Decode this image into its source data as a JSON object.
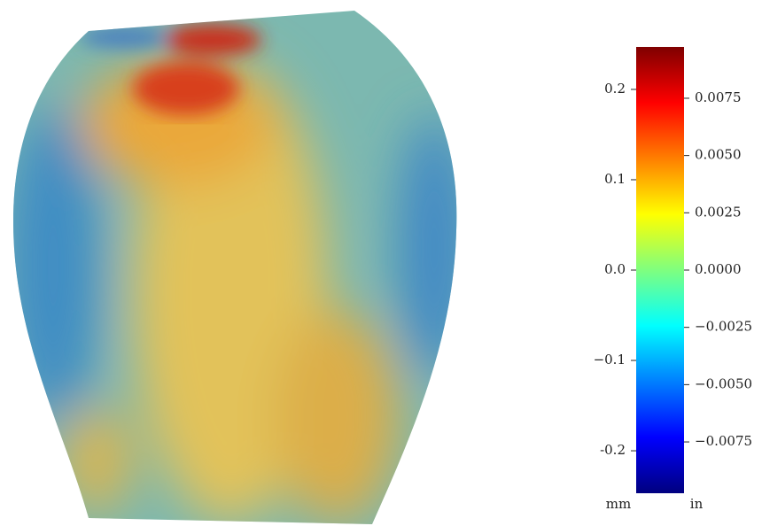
{
  "chart_data": {
    "type": "heatmap",
    "colormap": "jet",
    "ylabel": "mm",
    "y2label": "in",
    "ylim": [
      -0.247,
      0.247
    ],
    "yticks": [
      -0.2,
      {
        "value": -0.1,
        "label": "−0.1"
      },
      {
        "value": 0,
        "label": "0.0"
      },
      0.1,
      0.2
    ],
    "y2lim": [
      -0.00974,
      0.00974
    ],
    "y2ticks": [
      {
        "value": -0.0075,
        "label": "−0.0075"
      },
      {
        "value": -0.005,
        "label": "−0.0050"
      },
      {
        "value": -0.0025,
        "label": "−0.0025"
      },
      {
        "value": 0,
        "label": "0.0000"
      },
      {
        "value": 0.0025,
        "label": "0.0025"
      },
      {
        "value": 0.005,
        "label": "0.0050"
      },
      0.0075
    ]
  }
}
